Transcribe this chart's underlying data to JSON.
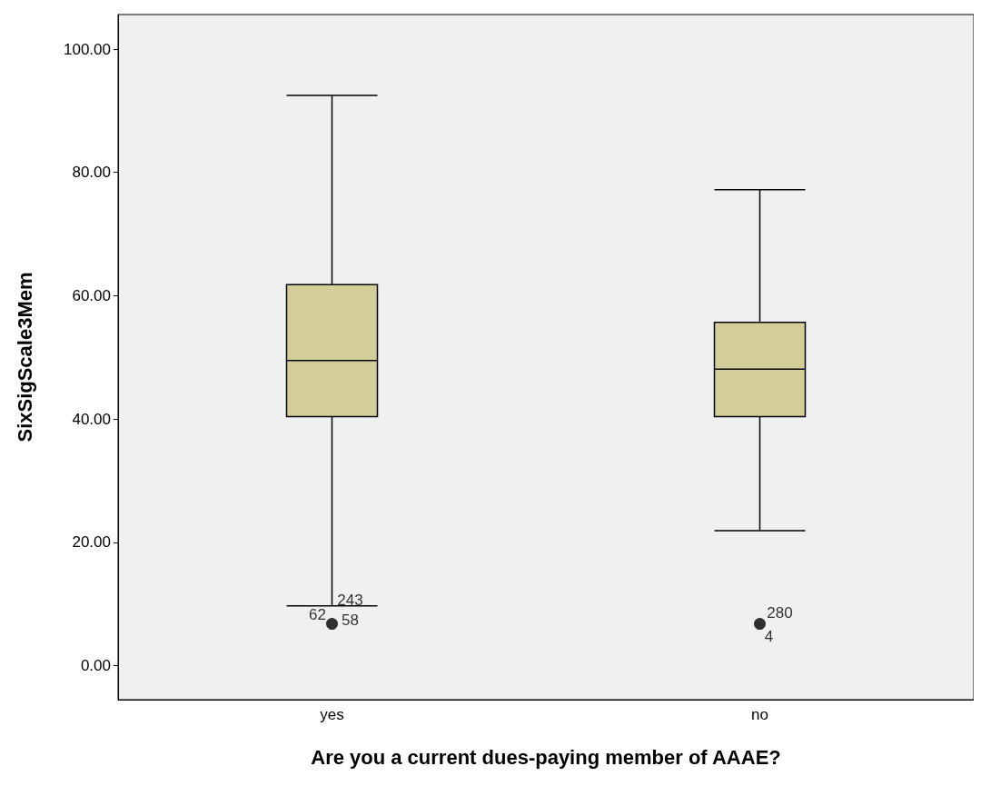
{
  "chart_data": {
    "type": "box",
    "xlabel": "Are you a current dues-paying member of AAAE?",
    "ylabel": "SixSigScale3Mem",
    "categories": [
      "yes",
      "no"
    ],
    "color": "#d3ce98",
    "boxes": [
      {
        "low": 9.7,
        "q1": 40.4,
        "median": 49.5,
        "q3": 61.8,
        "high": 92.5,
        "outliers": [
          6.8
        ]
      },
      {
        "low": 21.9,
        "q1": 40.4,
        "median": 48.1,
        "q3": 55.7,
        "high": 77.2,
        "outliers": [
          6.8
        ]
      }
    ],
    "ylim": [
      -5.5,
      105.6
    ],
    "yticks": [
      {
        "value": 0,
        "label": "0.00"
      },
      {
        "value": 20,
        "label": "20.00"
      },
      {
        "value": 40,
        "label": "40.00"
      },
      {
        "value": 60,
        "label": "60.00"
      },
      {
        "value": 80,
        "label": "80.00"
      },
      {
        "value": 100,
        "label": "100.00"
      }
    ],
    "annotations": [
      "62",
      "243",
      "58",
      "280",
      "4"
    ]
  }
}
